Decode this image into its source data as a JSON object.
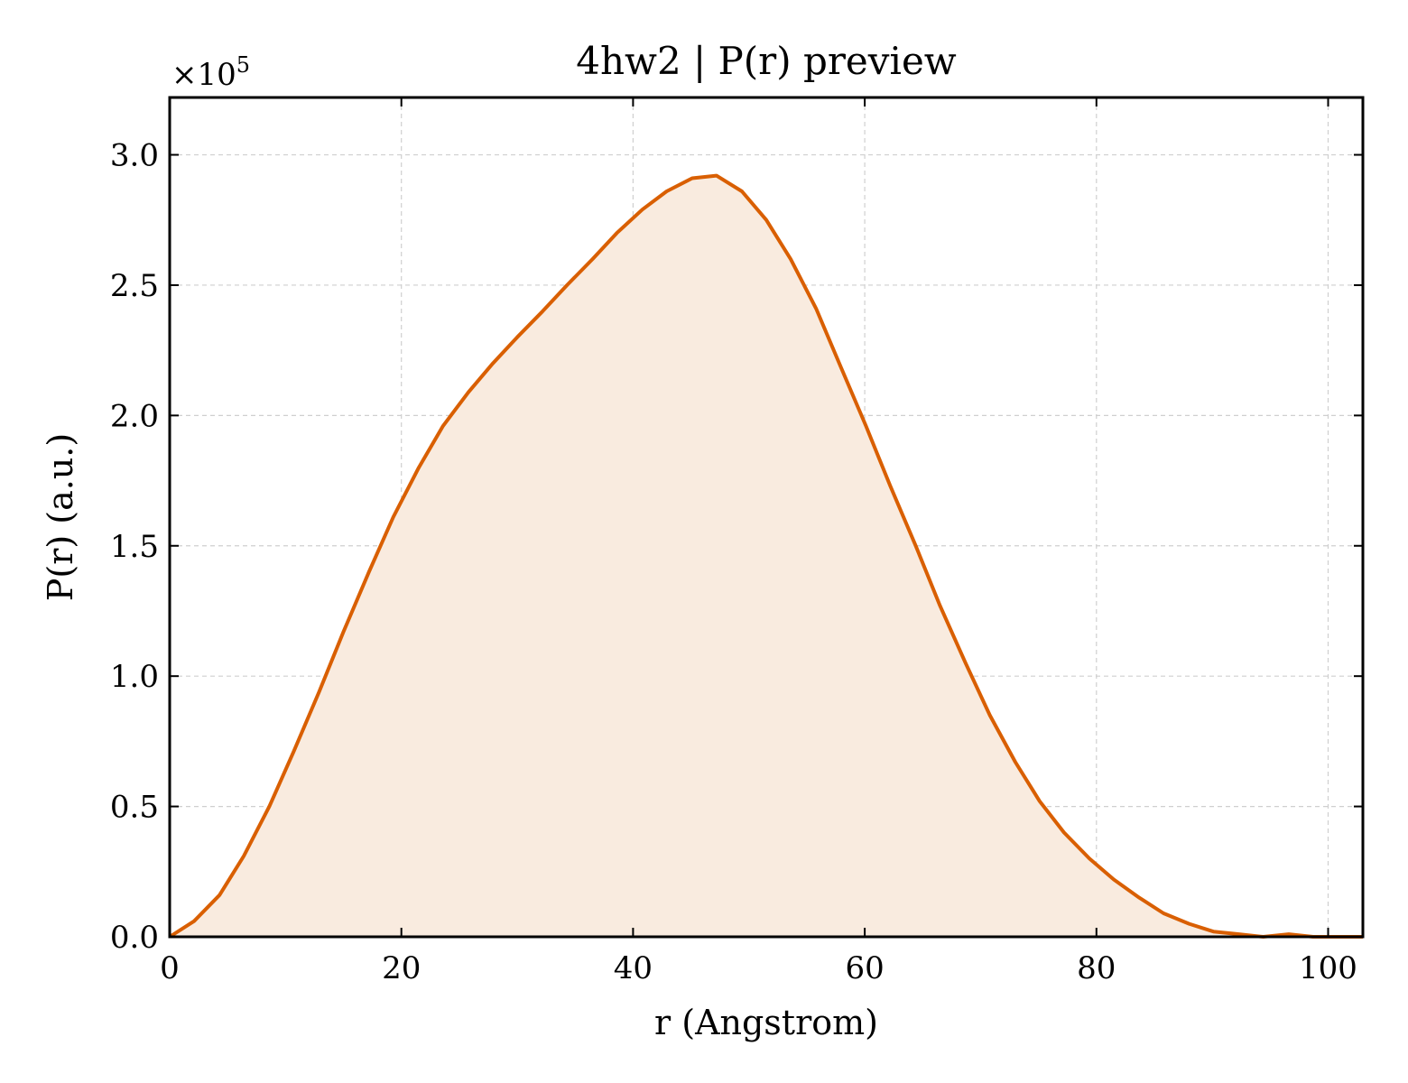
{
  "chart_data": {
    "type": "area",
    "title": "4hw2 | P(r) preview",
    "xlabel": "r (Angstrom)",
    "ylabel": "P(r) (a.u.)",
    "y_multiplier": "×10",
    "y_multiplier_exponent": "5",
    "xlim": [
      0,
      103
    ],
    "ylim": [
      0,
      3.22
    ],
    "x_ticks": [
      0,
      20,
      40,
      60,
      80,
      100
    ],
    "y_ticks": [
      0.0,
      0.5,
      1.0,
      1.5,
      2.0,
      2.5,
      3.0
    ],
    "x_tick_labels": [
      "0",
      "20",
      "40",
      "60",
      "80",
      "100"
    ],
    "y_tick_labels": [
      "0.0",
      "0.5",
      "1.0",
      "1.5",
      "2.0",
      "2.5",
      "3.0"
    ],
    "grid": true,
    "line_color": "#d95f02",
    "fill_color": "#f9ebdf",
    "series": [
      {
        "x": [
          0,
          2.1,
          4.3,
          6.4,
          8.6,
          10.7,
          12.9,
          15.0,
          17.2,
          19.3,
          21.5,
          23.6,
          25.8,
          27.9,
          30.0,
          32.2,
          34.3,
          36.5,
          38.6,
          40.8,
          42.9,
          45.1,
          47.2,
          49.4,
          51.5,
          53.6,
          55.8,
          57.9,
          60.1,
          62.2,
          64.4,
          66.5,
          68.7,
          70.8,
          73.0,
          75.1,
          77.2,
          79.4,
          81.5,
          83.7,
          85.8,
          88.0,
          90.1,
          92.3,
          94.4,
          96.6,
          98.7,
          100.9,
          103.0
        ],
        "y": [
          0.0,
          0.06,
          0.16,
          0.31,
          0.5,
          0.71,
          0.94,
          1.17,
          1.4,
          1.61,
          1.8,
          1.96,
          2.09,
          2.2,
          2.3,
          2.4,
          2.5,
          2.6,
          2.7,
          2.79,
          2.86,
          2.91,
          2.92,
          2.86,
          2.75,
          2.6,
          2.41,
          2.19,
          1.96,
          1.73,
          1.5,
          1.27,
          1.05,
          0.85,
          0.67,
          0.52,
          0.4,
          0.3,
          0.22,
          0.15,
          0.09,
          0.05,
          0.02,
          0.01,
          0.0,
          0.01,
          0.0,
          0.0,
          0.0
        ]
      }
    ]
  }
}
